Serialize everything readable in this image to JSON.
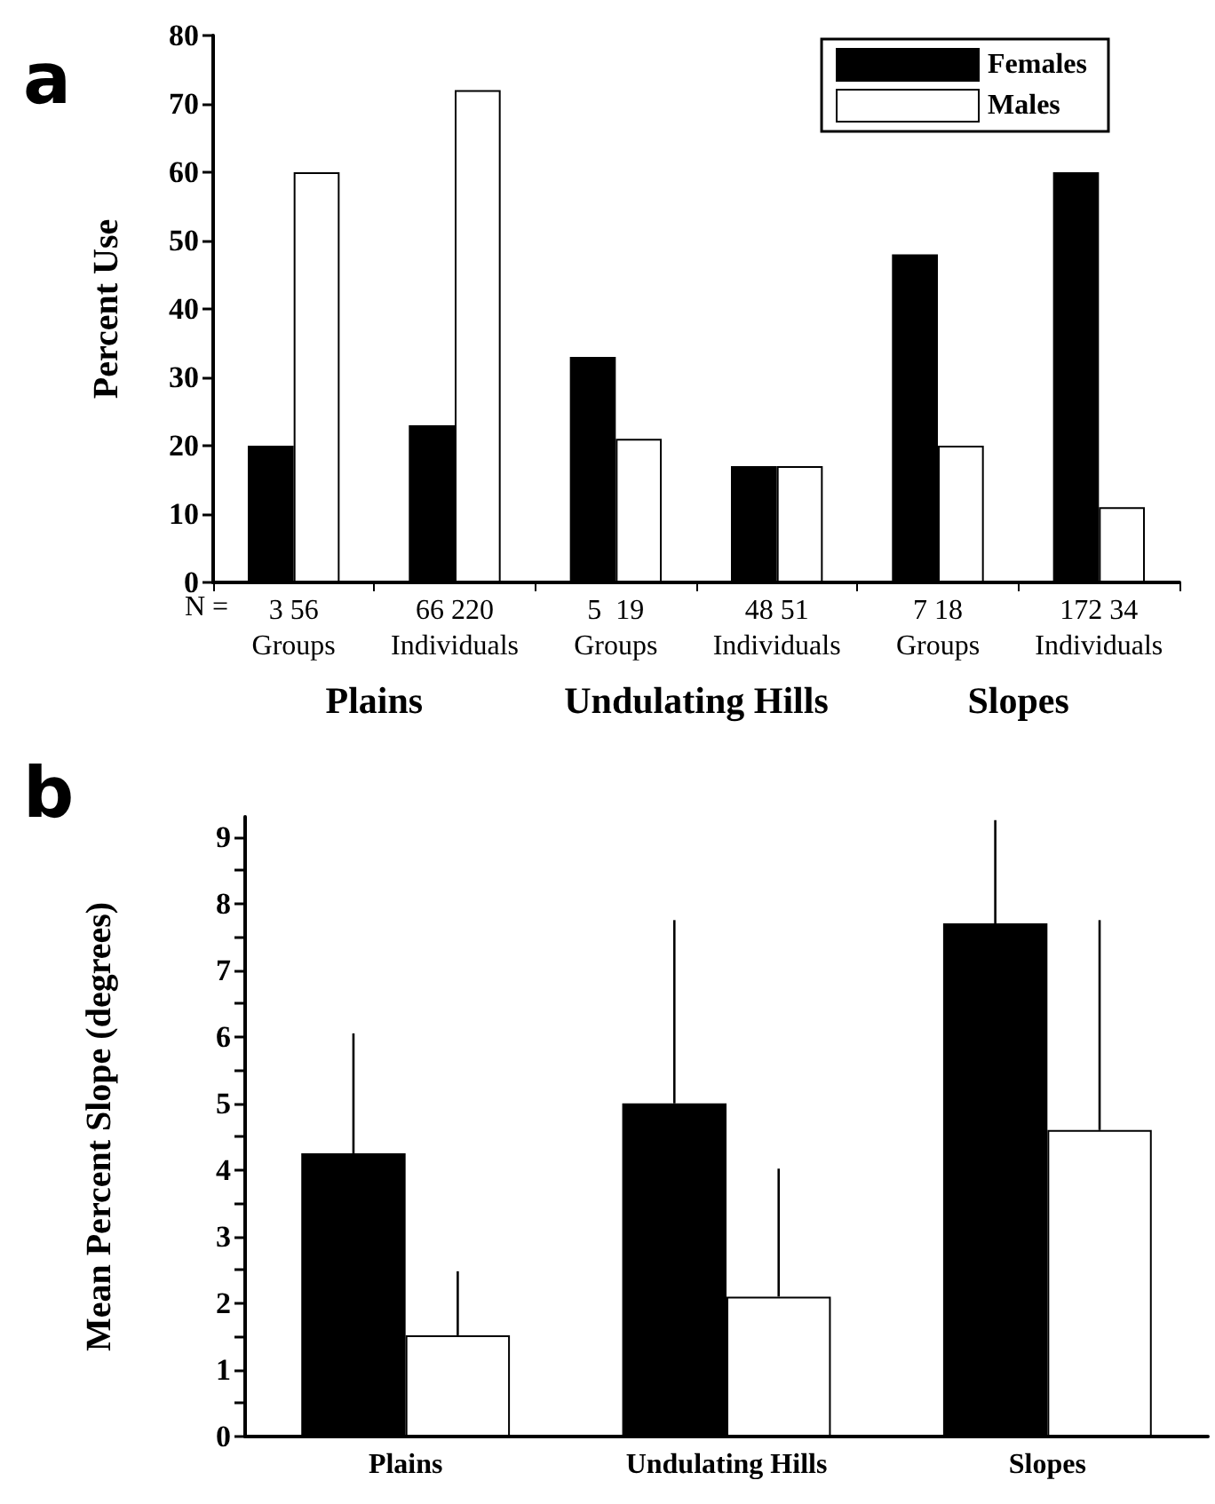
{
  "chart_data": [
    {
      "type": "bar",
      "title": "a",
      "ylabel": "Percent Use",
      "categories": [
        "3 56\nGroups",
        "66 220\nIndividuals",
        "5  19\nGroups",
        "48 51\nIndividuals",
        "7 18\nGroups",
        "172 34\nIndividuals"
      ],
      "series": [
        {
          "name": "Females",
          "color": "#000000",
          "values": [
            20,
            23,
            33,
            17,
            48,
            60
          ]
        },
        {
          "name": "Males",
          "color": "#ffffff",
          "values": [
            60,
            72,
            21,
            17,
            20,
            11
          ]
        }
      ],
      "ylim": [
        0,
        80
      ],
      "yticks": [
        0,
        10,
        20,
        30,
        40,
        50,
        60,
        70,
        80
      ],
      "legend": "top right",
      "grid": false,
      "annotations": [
        "N =",
        "Plains",
        "Undulating Hills",
        "Slopes"
      ]
    },
    {
      "type": "bar",
      "title": "b",
      "ylabel": "Mean Percent Slope (degrees)",
      "categories": [
        "Plains",
        "Undulating Hills",
        "Slopes"
      ],
      "series": [
        {
          "color": "#000000",
          "values": [
            4.25,
            5.0,
            7.7
          ],
          "errors": [
            [
              4.25,
              6.05
            ],
            [
              5.0,
              7.75
            ],
            [
              7.7,
              9.25
            ]
          ]
        },
        {
          "color": "#ffffff",
          "values": [
            1.52,
            2.1,
            4.6
          ],
          "errors": [
            [
              1.52,
              2.48
            ],
            [
              2.1,
              4.02
            ],
            [
              4.6,
              7.75
            ]
          ]
        }
      ],
      "ylim": [
        0,
        9.3
      ],
      "yticks": [
        0,
        {
          "value": 0.5,
          "label": null
        },
        1,
        {
          "value": 1.5,
          "label": null
        },
        2,
        {
          "value": 2.5,
          "label": null
        },
        3,
        {
          "value": 3.5,
          "label": null
        },
        4,
        {
          "value": 4.5,
          "label": null
        },
        5,
        {
          "value": 5.5,
          "label": null
        },
        6,
        {
          "value": 6.5,
          "label": null
        },
        7,
        {
          "value": 7.5,
          "label": null
        },
        8,
        {
          "value": 8.5,
          "label": null
        },
        9
      ],
      "legend": false,
      "grid": false
    }
  ]
}
